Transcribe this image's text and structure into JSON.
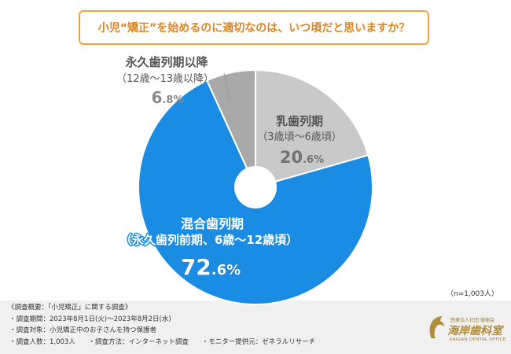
{
  "chart_data": {
    "type": "pie",
    "title": "小児“矯正”を始めるのに適切なのは、いつ頃だと思いますか？",
    "categories": [
      "乳歯列期",
      "混合歯列期",
      "永久歯列期以降"
    ],
    "category_notes": [
      "（3歳頃～6歳頃）",
      "（永久歯列前期、6歳～12歳頃）",
      "（12歳～13歳以降）"
    ],
    "values": [
      20.6,
      72.6,
      6.8
    ],
    "value_labels": [
      "20.6%",
      "72.6%",
      "6.8%"
    ],
    "colors": [
      "#c9c9c9",
      "#1b8ce4",
      "#a9a9a9"
    ],
    "donut_hole": true,
    "sample_size": "（n=1,003人）"
  },
  "survey": {
    "heading": "《調査概要：「小児矯正」に関する調査》",
    "period": "・調査期間：2023年8月1日(火)～2023年8月2日(水)",
    "target": "・調査対象：小児矯正中のお子さんを持つ保護者",
    "respondents": "・調査人数：1,003人",
    "method": "・調査方法：インターネット調査",
    "provider": "・モニター提供元：ゼネラルリサーチ"
  },
  "logo": {
    "corporation": "医療法人社団 徹樹会",
    "name": "海岸歯科室",
    "name_en": "KAIGAN DENTAL OFFICE",
    "color": "#b08d3c",
    "icon": "dolphin-icon"
  }
}
